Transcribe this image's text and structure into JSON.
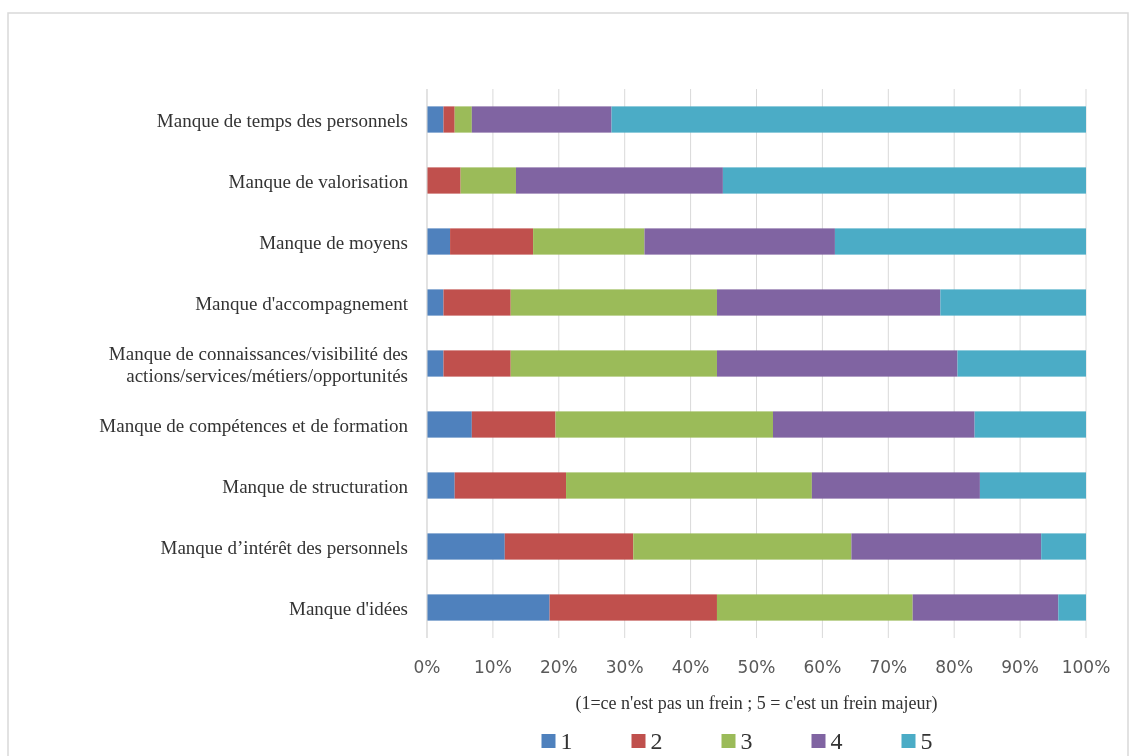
{
  "chart_data": {
    "type": "bar",
    "orientation": "horizontal",
    "stacked": true,
    "xlabel": "(1=ce n'est pas un frein ; 5 = c'est un frein majeur)",
    "categories": [
      "Manque de temps des personnels",
      "Manque de valorisation",
      "Manque de moyens",
      "Manque d'accompagnement",
      "Manque de connaissances/visibilité des actions/services/métiers/opportunités",
      "Manque de compétences et de formation",
      "Manque de structuration",
      "Manque d’intérêt des personnels",
      "Manque d'idées"
    ],
    "series": [
      {
        "name": "1",
        "color": "#4f81bd",
        "values": [
          2.5,
          0,
          3.5,
          2.5,
          2.5,
          6.8,
          4.2,
          11.8,
          18.6
        ]
      },
      {
        "name": "2",
        "color": "#c0504d",
        "values": [
          1.7,
          5.1,
          12.6,
          10.2,
          10.2,
          12.7,
          16.9,
          19.5,
          25.4
        ]
      },
      {
        "name": "3",
        "color": "#9bbb59",
        "values": [
          2.6,
          8.4,
          16.9,
          31.3,
          31.3,
          33.0,
          37.3,
          33.1,
          29.7
        ]
      },
      {
        "name": "4",
        "color": "#8064a2",
        "values": [
          21.2,
          31.4,
          28.9,
          33.9,
          36.5,
          30.6,
          25.5,
          28.8,
          22.1
        ]
      },
      {
        "name": "5",
        "color": "#4bacc6",
        "values": [
          72.0,
          55.1,
          38.1,
          22.1,
          19.5,
          16.9,
          16.1,
          6.8,
          4.2
        ]
      }
    ],
    "xlim": [
      0,
      100
    ],
    "xticks": [
      {
        "value": 0,
        "label": "0%"
      },
      {
        "value": 10,
        "label": "10%"
      },
      {
        "value": 20,
        "label": "20%"
      },
      {
        "value": 30,
        "label": "30%"
      },
      {
        "value": 40,
        "label": "40%"
      },
      {
        "value": 50,
        "label": "50%"
      },
      {
        "value": 60,
        "label": "60%"
      },
      {
        "value": 70,
        "label": "70%"
      },
      {
        "value": 80,
        "label": "80%"
      },
      {
        "value": 90,
        "label": "90%"
      },
      {
        "value": 100,
        "label": "100%"
      }
    ],
    "grid": "x",
    "legend": "bottom"
  }
}
